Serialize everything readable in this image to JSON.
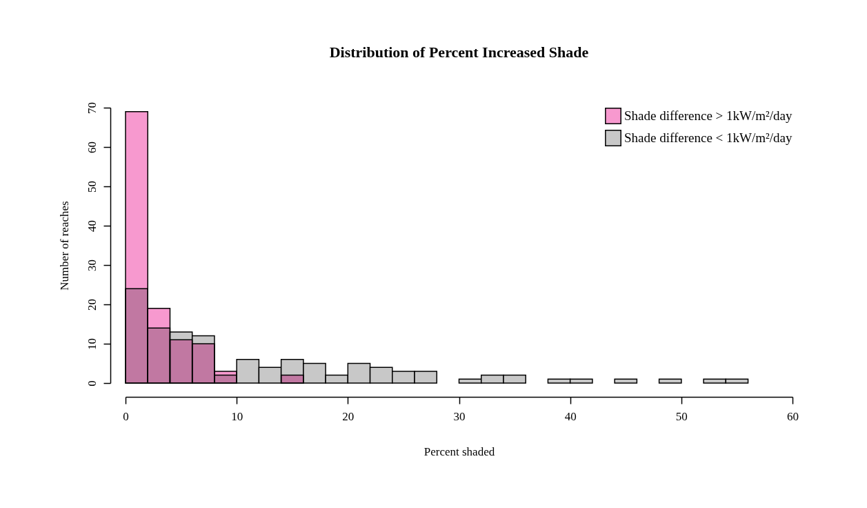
{
  "chart_data": {
    "type": "histogram",
    "title": "Distribution of Percent Increased Shade",
    "xlabel": "Percent shaded",
    "ylabel": "Number of reaches",
    "bins": [
      0,
      2,
      4,
      6,
      8,
      10,
      12,
      14,
      16,
      18,
      20,
      22,
      24,
      26,
      28,
      30,
      32,
      34,
      36,
      38,
      40,
      42,
      44,
      46,
      48,
      50,
      52,
      54,
      56
    ],
    "series": [
      {
        "name": "Shade difference < 1kW/m²/day",
        "color": "#c8c8c8",
        "values": [
          24,
          14,
          13,
          12,
          2,
          6,
          4,
          6,
          5,
          2,
          5,
          4,
          3,
          3,
          0,
          1,
          2,
          2,
          0,
          1,
          1,
          0,
          1,
          0,
          1,
          0,
          1,
          1
        ]
      },
      {
        "name": "Shade difference > 1kW/m²/day",
        "color": "#f799cf",
        "values": [
          69,
          19,
          11,
          10,
          3,
          0,
          0,
          2,
          0,
          0,
          0,
          0,
          0,
          0,
          0,
          0,
          0,
          0,
          0,
          0,
          0,
          0,
          0,
          0,
          0,
          0,
          0,
          0
        ]
      }
    ],
    "xlim": [
      0,
      60
    ],
    "xticks": [
      0,
      10,
      20,
      30,
      40,
      50,
      60
    ],
    "ylim": [
      0,
      70
    ],
    "yticks": [
      0,
      10,
      20,
      30,
      40,
      50,
      60,
      70
    ],
    "grid": false,
    "legend": "top right"
  }
}
